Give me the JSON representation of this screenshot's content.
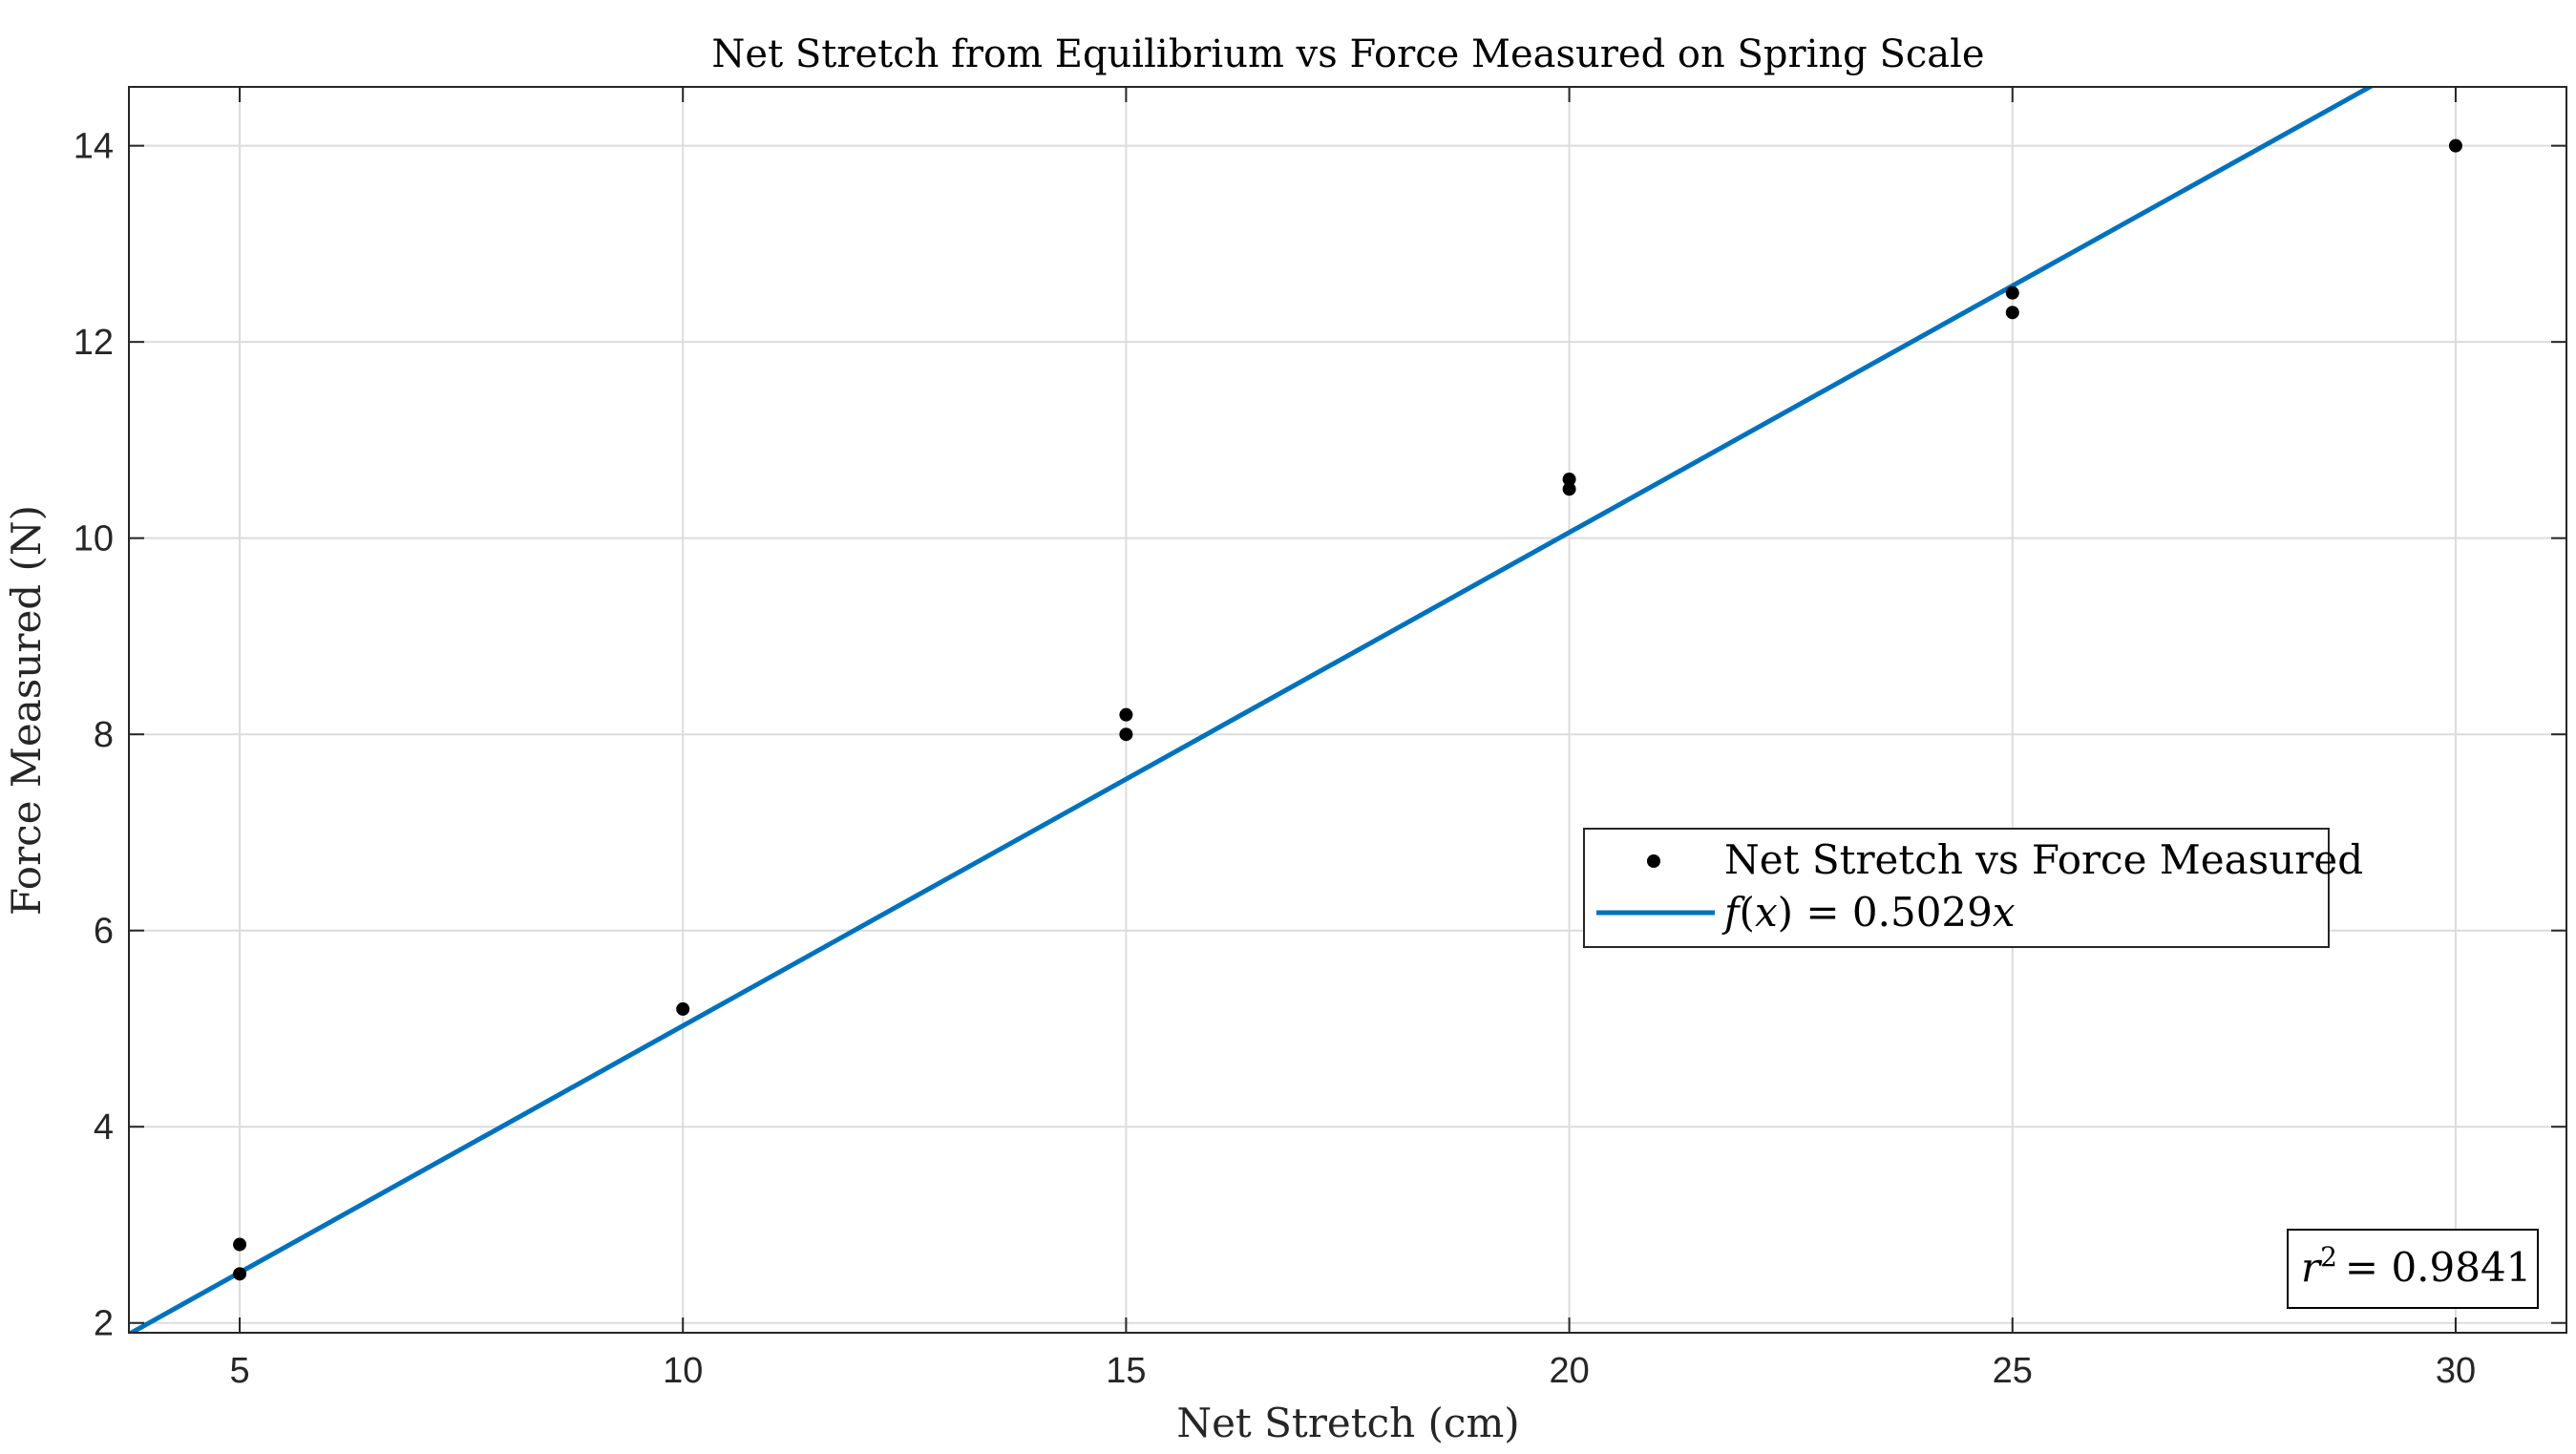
{
  "chart_data": {
    "type": "scatter",
    "title": "Net Stretch from Equilibrium vs Force Measured on Spring Scale",
    "xlabel": "Net Stretch (cm)",
    "ylabel": "Force Measured (N)",
    "xlim": [
      3.75,
      31.25
    ],
    "ylim": [
      1.9,
      14.6
    ],
    "xticks": [
      5,
      10,
      15,
      20,
      25,
      30
    ],
    "yticks": [
      2,
      4,
      6,
      8,
      10,
      12,
      14
    ],
    "xtick_labels": [
      "5",
      "10",
      "15",
      "20",
      "25",
      "30"
    ],
    "ytick_labels": [
      "2",
      "4",
      "6",
      "8",
      "10",
      "12",
      "14"
    ],
    "grid": true,
    "series": [
      {
        "name": "Net Stretch vs Force Measured",
        "kind": "scatter",
        "color": "#000000",
        "x": [
          5,
          5,
          10,
          15,
          15,
          20,
          20,
          25,
          25,
          30
        ],
        "y": [
          2.5,
          2.8,
          5.2,
          8.0,
          8.2,
          10.5,
          10.6,
          12.3,
          12.5,
          14.0
        ]
      },
      {
        "name": "f(x) = 0.5029x",
        "kind": "line",
        "color": "#0072BD",
        "slope": 0.5029
      }
    ],
    "legend": {
      "position": "right-center",
      "entries": [
        {
          "marker": "dot",
          "label": "Net Stretch vs Force Measured"
        },
        {
          "marker": "line",
          "label_func": "f",
          "label_var": "x",
          "label_eq": "= 0.5029",
          "label_tail": "x"
        }
      ]
    },
    "annotation": {
      "position": "bottom-right",
      "lhs": "r",
      "exp": "2",
      "rhs": "= 0.9841"
    }
  }
}
